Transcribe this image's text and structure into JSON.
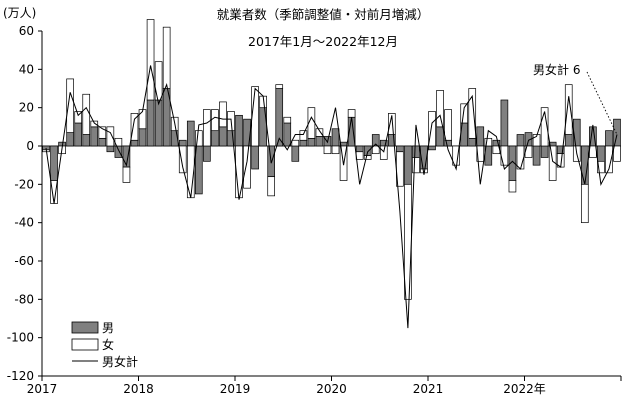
{
  "chart_data": {
    "type": "bar",
    "title": "就業者数（季節調整値・対前月増減）",
    "subtitle": "2017年1月～2022年12月",
    "unit_label": "(万人)",
    "ylim": [
      -120,
      60
    ],
    "yticks": [
      60,
      40,
      20,
      0,
      -20,
      -40,
      -60,
      -80,
      -100,
      -120
    ],
    "grid": false,
    "start": "2017-01",
    "x_labels": [
      {
        "index": 0,
        "label": "2017"
      },
      {
        "index": 12,
        "label": "2018"
      },
      {
        "index": 24,
        "label": "2019"
      },
      {
        "index": 36,
        "label": "2020"
      },
      {
        "index": 48,
        "label": "2021"
      },
      {
        "index": 60,
        "label": "2022年"
      }
    ],
    "annotation": {
      "text": "男女計 6",
      "month_index": 71
    },
    "legend": {
      "position": "bottom-left",
      "entries": [
        "男",
        "女",
        "男女計"
      ]
    },
    "series": [
      {
        "name": "男",
        "type": "bar",
        "color": "#808080",
        "values": [
          -2,
          -18,
          2,
          7,
          12,
          6,
          10,
          4,
          -3,
          -6,
          -11,
          3,
          9,
          24,
          24,
          30,
          8,
          3,
          13,
          -25,
          -8,
          8,
          10,
          8,
          16,
          14,
          -12,
          20,
          -16,
          30,
          12,
          -8,
          3,
          4,
          5,
          5,
          9,
          2,
          15,
          -3,
          -5,
          6,
          3,
          6,
          -3,
          -20,
          -6,
          -12,
          -2,
          10,
          3,
          0,
          12,
          4,
          10,
          -10,
          3,
          24,
          -18,
          6,
          7,
          -10,
          -6,
          2,
          -4,
          6,
          14,
          -20,
          10,
          -8,
          8,
          14
        ]
      },
      {
        "name": "女",
        "type": "bar",
        "color": "#ffffff",
        "values": [
          -1,
          -12,
          -4,
          28,
          6,
          21,
          3,
          6,
          10,
          4,
          -8,
          14,
          10,
          42,
          20,
          32,
          7,
          -14,
          -27,
          8,
          19,
          11,
          13,
          10,
          -27,
          -22,
          31,
          6,
          -10,
          2,
          3,
          3,
          5,
          16,
          4,
          -4,
          -4,
          -18,
          4,
          -4,
          -2,
          -4,
          -7,
          11,
          -18,
          -60,
          -8,
          -2,
          18,
          19,
          16,
          -10,
          10,
          26,
          -8,
          4,
          -4,
          -10,
          -6,
          -12,
          -6,
          6,
          20,
          -18,
          -7,
          26,
          -8,
          -20,
          -6,
          -6,
          -14,
          -8
        ]
      },
      {
        "name": "男女計",
        "type": "line",
        "color": "#000000",
        "values": [
          -1,
          -30,
          -1,
          28,
          16,
          20,
          12,
          9,
          7,
          -2,
          -10,
          14,
          18,
          42,
          22,
          32,
          12,
          -11,
          -27,
          11,
          12,
          15,
          14,
          14,
          -28,
          -8,
          30,
          26,
          -9,
          4,
          -2,
          6,
          6,
          15,
          8,
          2,
          20,
          -10,
          15,
          -20,
          -3,
          1,
          -3,
          16,
          -34,
          -95,
          11,
          -15,
          12,
          16,
          -2,
          -12,
          20,
          26,
          -20,
          8,
          5,
          -12,
          -8,
          -12,
          3,
          5,
          18,
          -8,
          -11,
          26,
          -4,
          -20,
          11,
          -20,
          -12,
          6
        ]
      }
    ]
  }
}
